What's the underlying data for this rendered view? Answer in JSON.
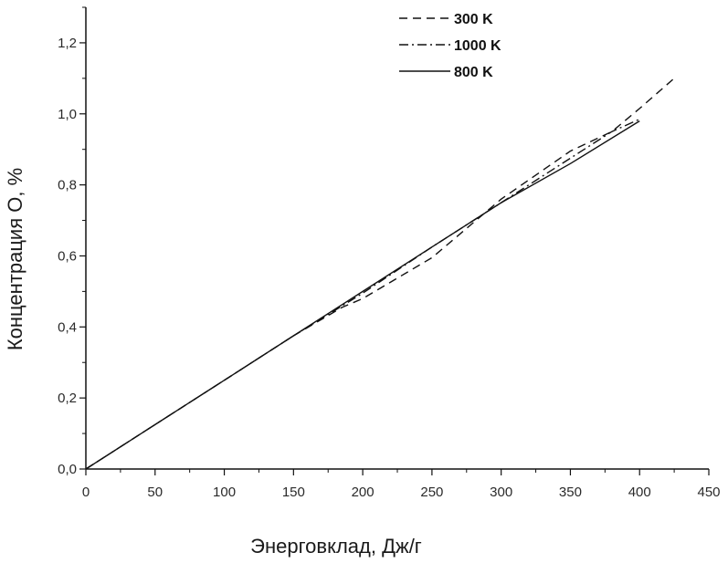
{
  "chart_data": {
    "type": "line",
    "xlabel": "Энерговклад, Дж/г",
    "ylabel": "Концентрация O, %",
    "xlim": [
      0,
      450
    ],
    "ylim": [
      0,
      1.3
    ],
    "x_ticks": [
      0,
      50,
      100,
      150,
      200,
      250,
      300,
      350,
      400,
      450
    ],
    "x_tick_labels": [
      "0",
      "50",
      "100",
      "150",
      "200",
      "250",
      "300",
      "350",
      "400",
      "450"
    ],
    "y_ticks": [
      0.0,
      0.2,
      0.4,
      0.6,
      0.8,
      1.0,
      1.2
    ],
    "y_tick_labels": [
      "0,0",
      "0,2",
      "0,4",
      "0,6",
      "0,8",
      "1,0",
      "1,2"
    ],
    "grid": false,
    "legend_position": "top-center",
    "series": [
      {
        "name": "300 K",
        "dash": "dashed",
        "color": "#111111",
        "x": [
          0,
          50,
          100,
          150,
          185,
          200,
          250,
          300,
          350,
          380,
          400,
          425
        ],
        "y": [
          0,
          0.125,
          0.25,
          0.375,
          0.455,
          0.48,
          0.595,
          0.76,
          0.895,
          0.95,
          1.015,
          1.1
        ]
      },
      {
        "name": "1000 K",
        "dash": "dashdot",
        "color": "#111111",
        "x": [
          0,
          50,
          100,
          150,
          200,
          250,
          300,
          350,
          380,
          400
        ],
        "y": [
          0,
          0.125,
          0.25,
          0.375,
          0.495,
          0.625,
          0.75,
          0.875,
          0.95,
          0.985
        ]
      },
      {
        "name": "800 K",
        "dash": "solid",
        "color": "#111111",
        "x": [
          0,
          50,
          100,
          150,
          200,
          250,
          300,
          350,
          400
        ],
        "y": [
          0,
          0.125,
          0.25,
          0.375,
          0.5,
          0.625,
          0.75,
          0.86,
          0.98
        ]
      }
    ]
  }
}
